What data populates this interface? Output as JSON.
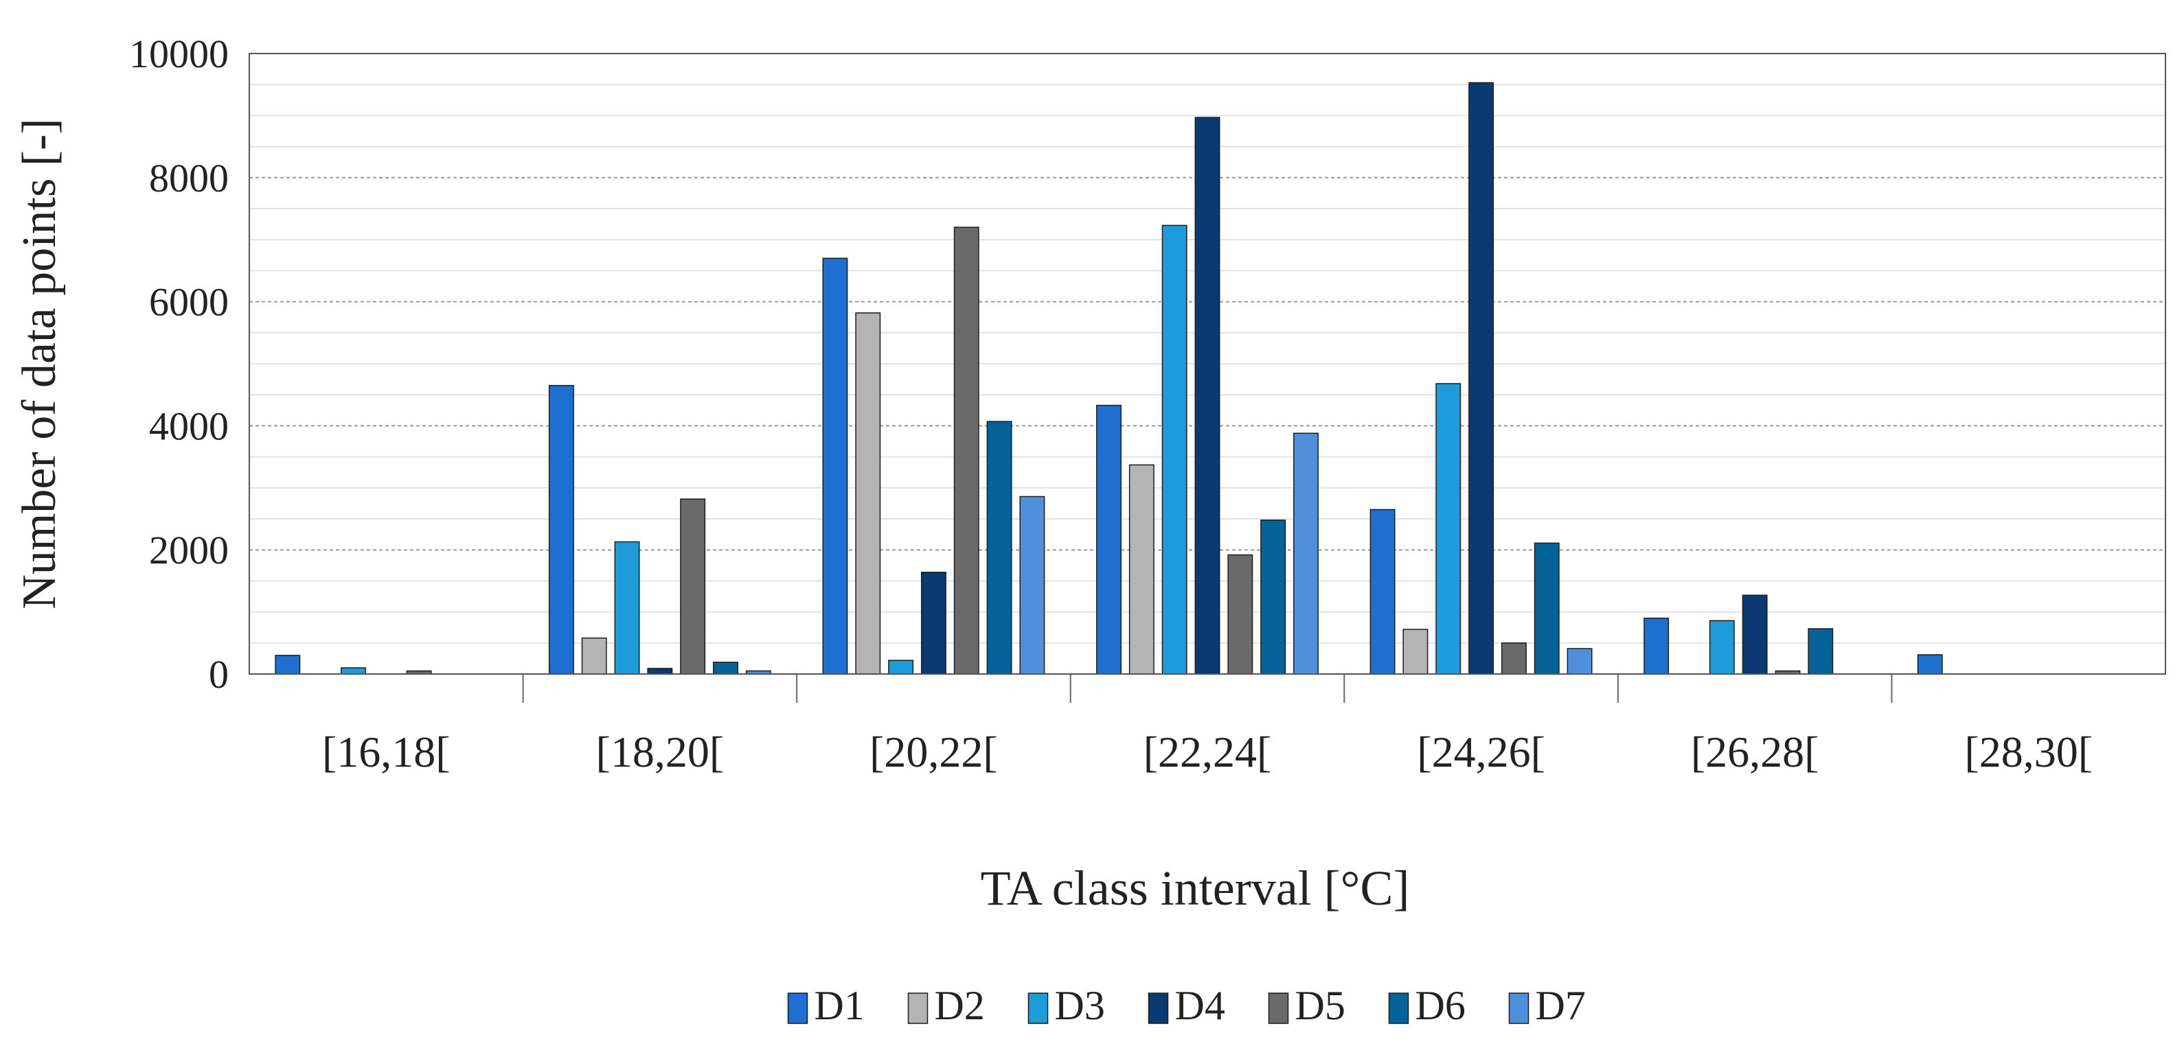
{
  "chart_data": {
    "type": "bar",
    "title": "",
    "xlabel": "TA class interval [°C]",
    "ylabel": "Number of data points [-]",
    "ylim": [
      0,
      10000
    ],
    "yticks": [
      0,
      2000,
      4000,
      6000,
      8000,
      10000
    ],
    "grid": true,
    "legend_position": "bottom-center",
    "categories": [
      "[16,18[",
      "[18,20[",
      "[20,22[",
      "[22,24[",
      "[24,26[",
      "[26,28[",
      "[28,30["
    ],
    "series": [
      {
        "name": "D1",
        "color": "#1F6FD0",
        "values": [
          300,
          4650,
          6700,
          4330,
          2650,
          900,
          310
        ]
      },
      {
        "name": "D2",
        "color": "#B4B4B4",
        "values": [
          0,
          580,
          5820,
          3370,
          720,
          0,
          0
        ]
      },
      {
        "name": "D3",
        "color": "#1E9BDB",
        "values": [
          100,
          2130,
          220,
          7230,
          4680,
          860,
          0
        ]
      },
      {
        "name": "D4",
        "color": "#0B3A73",
        "values": [
          0,
          90,
          1640,
          8970,
          9530,
          1270,
          0
        ]
      },
      {
        "name": "D5",
        "color": "#6A6A6A",
        "values": [
          50,
          2820,
          7200,
          1920,
          500,
          50,
          0
        ]
      },
      {
        "name": "D6",
        "color": "#06639A",
        "values": [
          0,
          190,
          4070,
          2480,
          2110,
          730,
          0
        ]
      },
      {
        "name": "D7",
        "color": "#4F8FDC",
        "values": [
          0,
          50,
          2860,
          3880,
          410,
          0,
          0
        ]
      }
    ]
  }
}
